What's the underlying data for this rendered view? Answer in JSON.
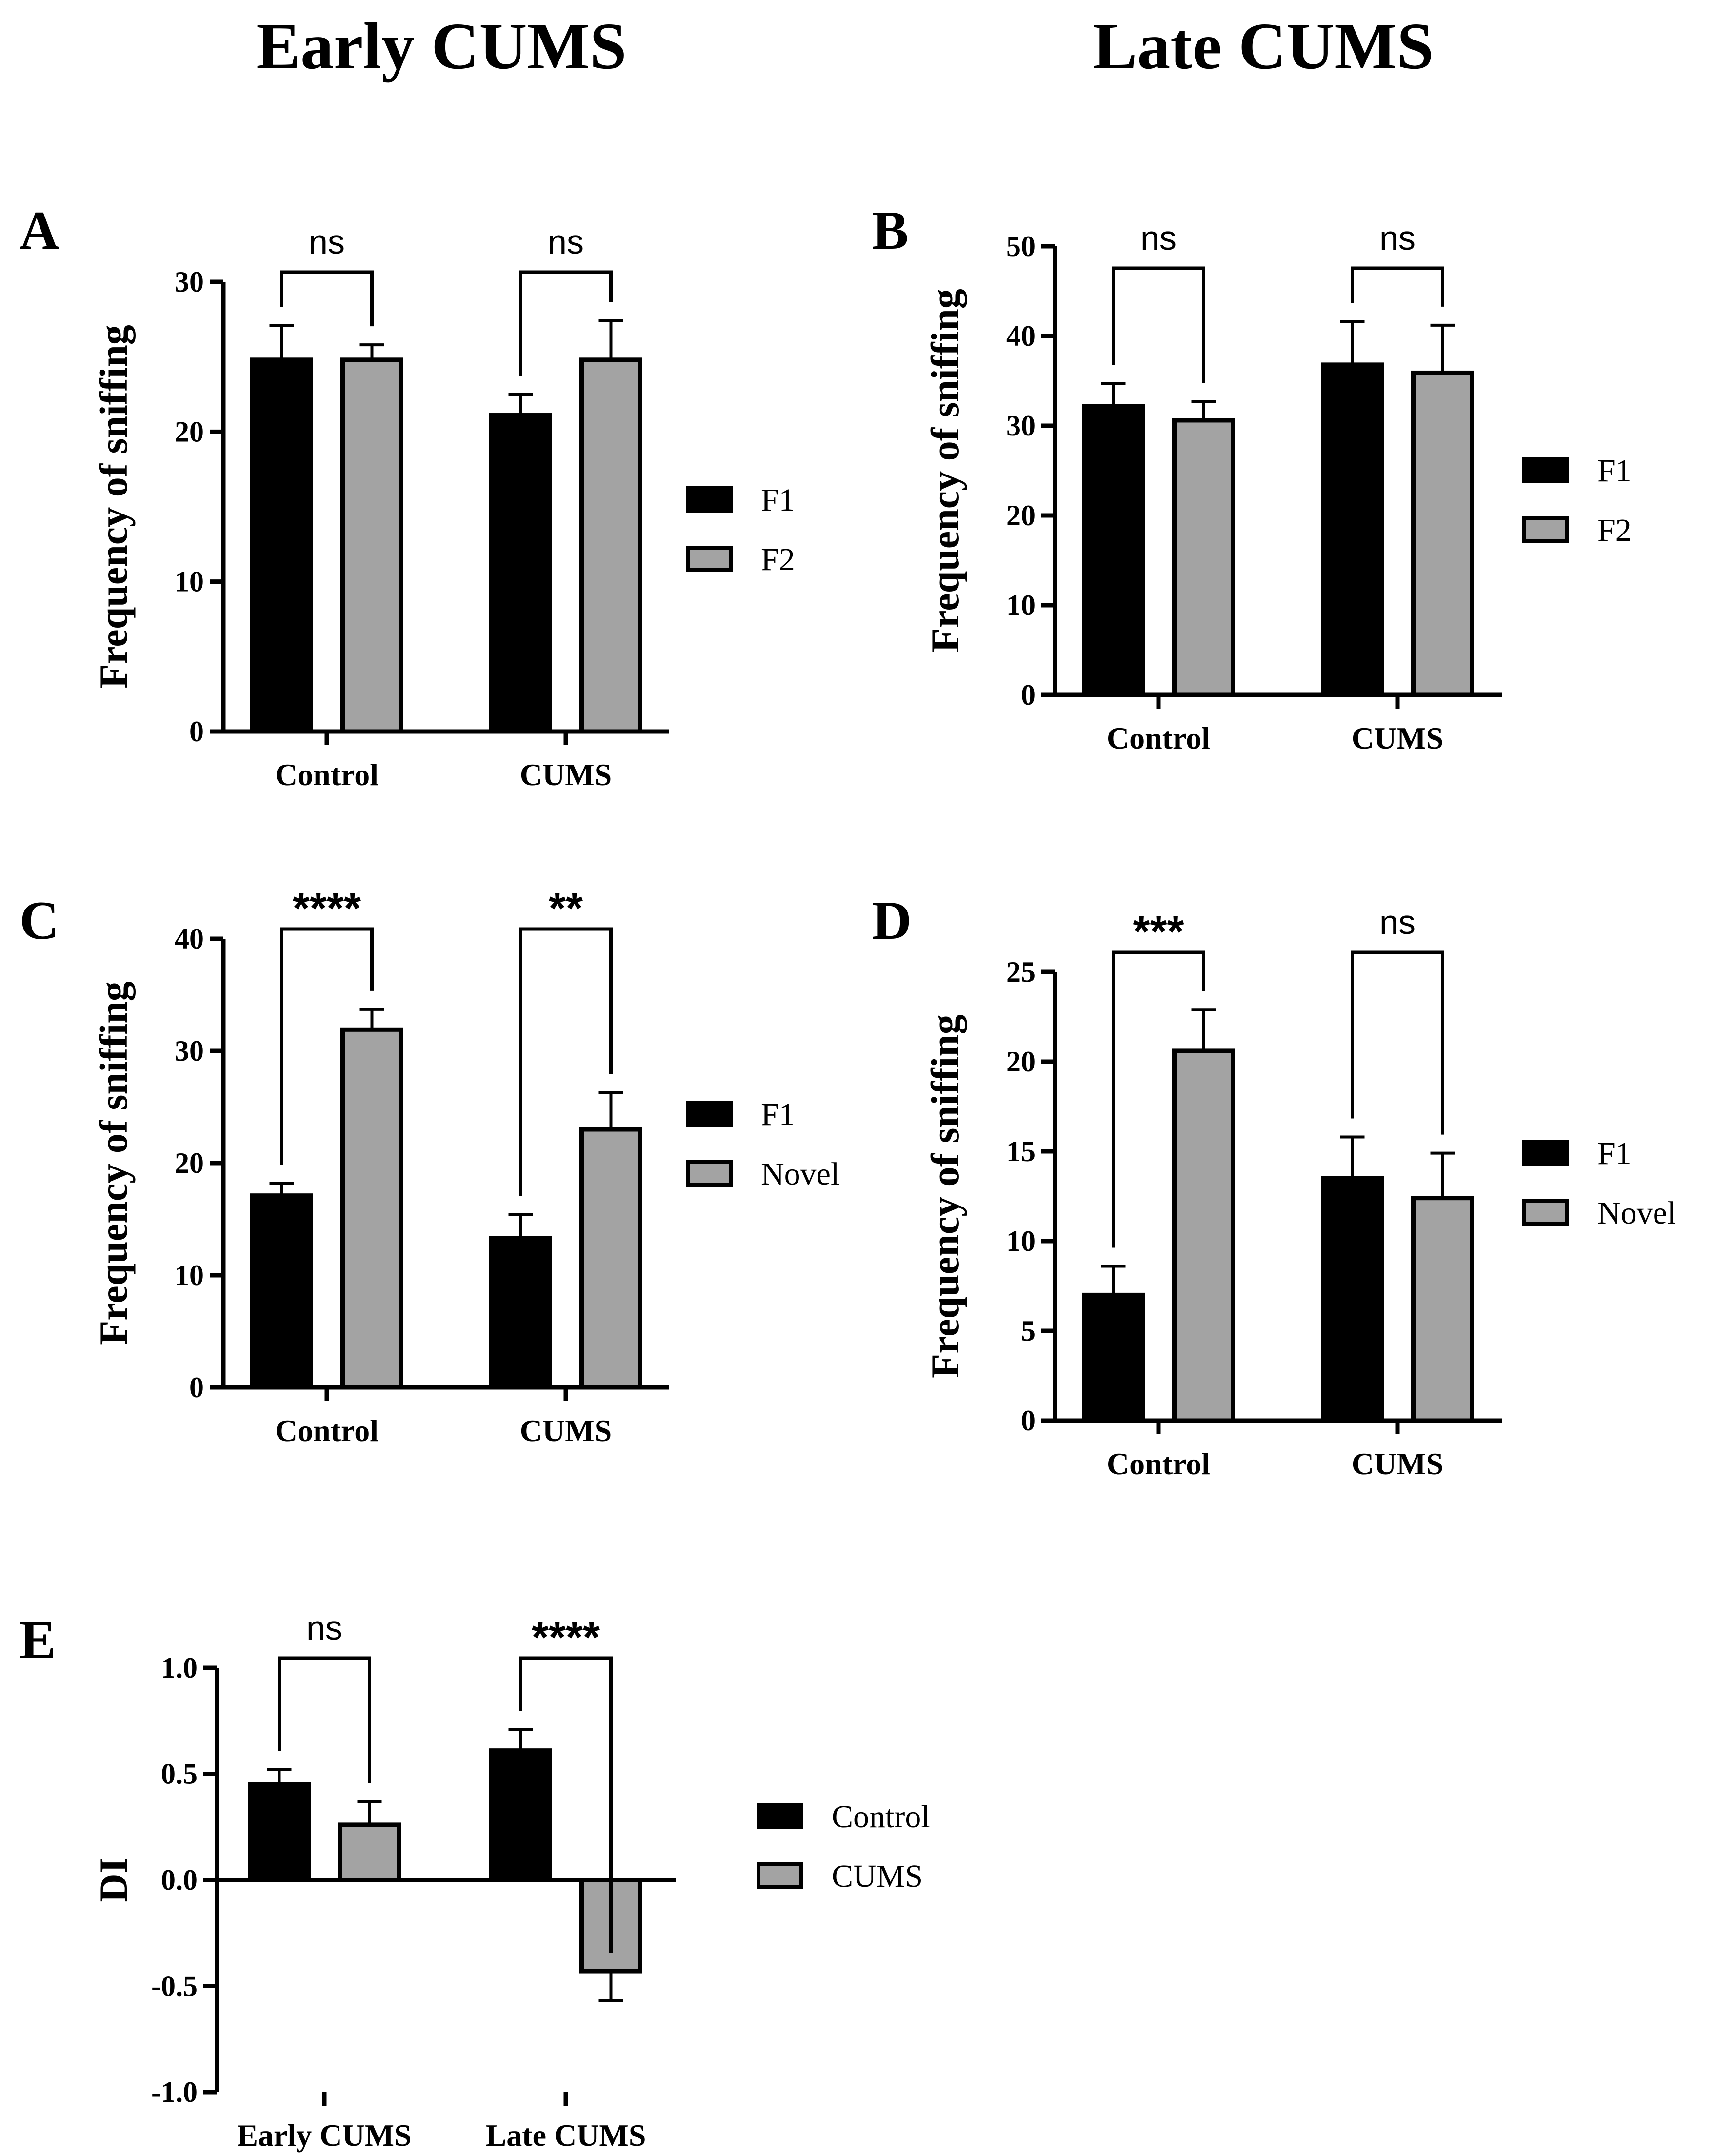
{
  "figure": {
    "column_titles": [
      "Early CUMS",
      "Late CUMS"
    ]
  },
  "colors": {
    "F1": "#000000",
    "second": "#a3a3a3",
    "stroke": "#000000"
  },
  "chart_data": [
    {
      "panel": "A",
      "type": "bar",
      "title": "Early CUMS",
      "ylabel": "Frequency of sniffing",
      "ylim": [
        0,
        30
      ],
      "yticks": [
        0,
        10,
        20,
        30
      ],
      "categories": [
        "Control",
        "CUMS"
      ],
      "series": [
        {
          "name": "F1",
          "values": [
            24.8,
            21.1
          ],
          "errors": [
            2.3,
            1.4
          ]
        },
        {
          "name": "F2",
          "values": [
            24.8,
            24.8
          ],
          "errors": [
            1.0,
            2.6
          ]
        }
      ],
      "significance": [
        "ns",
        "ns"
      ],
      "legend": [
        "F1",
        "F2"
      ],
      "legend_position": "right"
    },
    {
      "panel": "B",
      "type": "bar",
      "title": "Late CUMS",
      "ylabel": "Frequency of sniffing",
      "ylim": [
        0,
        50
      ],
      "yticks": [
        0,
        10,
        20,
        30,
        40,
        50
      ],
      "categories": [
        "Control",
        "CUMS"
      ],
      "series": [
        {
          "name": "F1",
          "values": [
            32.2,
            36.8
          ],
          "errors": [
            2.5,
            4.8
          ]
        },
        {
          "name": "F2",
          "values": [
            30.6,
            35.9
          ],
          "errors": [
            2.1,
            5.3
          ]
        }
      ],
      "significance": [
        "ns",
        "ns"
      ],
      "legend": [
        "F1",
        "F2"
      ],
      "legend_position": "right"
    },
    {
      "panel": "C",
      "type": "bar",
      "ylabel": "Frequency of sniffing",
      "ylim": [
        0,
        40
      ],
      "yticks": [
        0,
        10,
        20,
        30,
        40
      ],
      "categories": [
        "Control",
        "CUMS"
      ],
      "series": [
        {
          "name": "F1",
          "values": [
            17.1,
            13.3
          ],
          "errors": [
            1.1,
            2.1
          ]
        },
        {
          "name": "Novel",
          "values": [
            31.9,
            23.0
          ],
          "errors": [
            1.8,
            3.3
          ]
        }
      ],
      "significance": [
        "****",
        "**"
      ],
      "legend": [
        "F1",
        "Novel"
      ],
      "legend_position": "right"
    },
    {
      "panel": "D",
      "type": "bar",
      "ylabel": "Frequency of sniffing",
      "ylim": [
        0,
        25
      ],
      "yticks": [
        0,
        5,
        10,
        15,
        20,
        25
      ],
      "categories": [
        "Control",
        "CUMS"
      ],
      "series": [
        {
          "name": "F1",
          "values": [
            7.0,
            13.5
          ],
          "errors": [
            1.6,
            2.3
          ]
        },
        {
          "name": "Novel",
          "values": [
            20.6,
            12.4
          ],
          "errors": [
            2.3,
            2.5
          ]
        }
      ],
      "significance": [
        "***",
        "ns"
      ],
      "legend": [
        "F1",
        "Novel"
      ],
      "legend_position": "right"
    },
    {
      "panel": "E",
      "type": "bar",
      "ylabel": "DI",
      "ylim": [
        -1.0,
        1.0
      ],
      "yticks": [
        -1.0,
        -0.5,
        0.0,
        0.5,
        1.0
      ],
      "ytick_labels": [
        "-1.0",
        "-0.5",
        "0.0",
        "0.5",
        "1.0"
      ],
      "categories": [
        "Early CUMS",
        "Late CUMS"
      ],
      "series": [
        {
          "name": "Control",
          "values": [
            0.45,
            0.61
          ],
          "errors": [
            0.07,
            0.1
          ]
        },
        {
          "name": "CUMS",
          "values": [
            0.26,
            -0.43
          ],
          "errors": [
            0.11,
            0.14
          ]
        }
      ],
      "significance": [
        "ns",
        "****"
      ],
      "legend": [
        "Control",
        "CUMS"
      ],
      "legend_position": "right"
    }
  ]
}
